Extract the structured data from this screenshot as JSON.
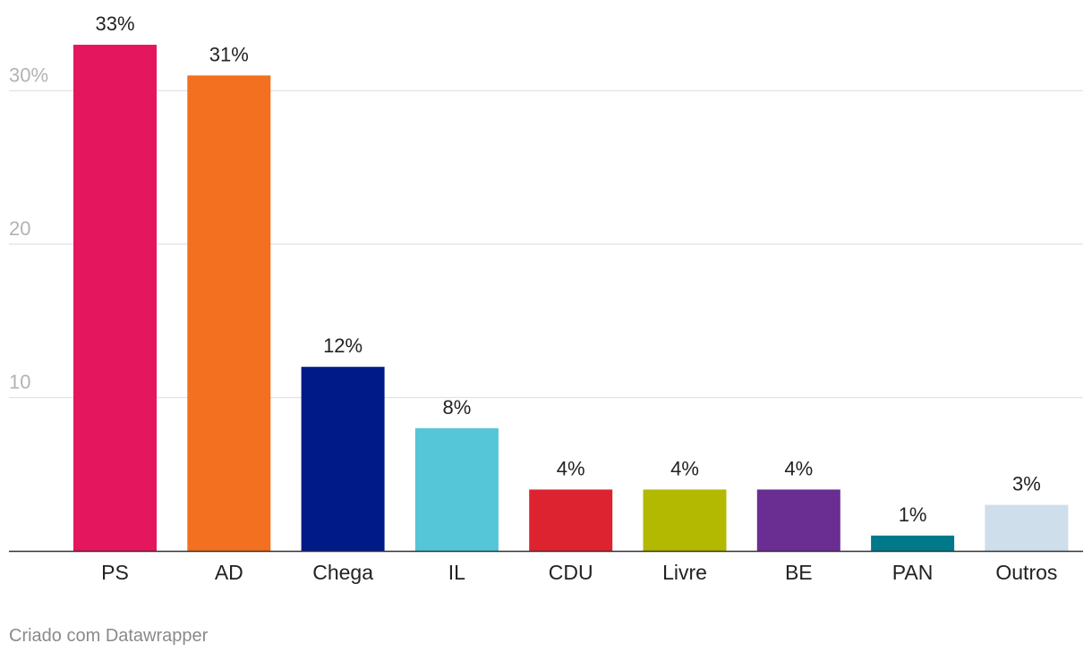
{
  "chart_data": {
    "type": "bar",
    "categories": [
      "PS",
      "AD",
      "Chega",
      "IL",
      "CDU",
      "Livre",
      "BE",
      "PAN",
      "Outros"
    ],
    "values": [
      33,
      31,
      12,
      8,
      4,
      4,
      4,
      1,
      3
    ],
    "value_labels": [
      "33%",
      "31%",
      "12%",
      "8%",
      "4%",
      "4%",
      "4%",
      "1%",
      "3%"
    ],
    "colors": [
      "#e3165e",
      "#f37021",
      "#001a87",
      "#55c5d8",
      "#dd2330",
      "#b3b800",
      "#6a2d91",
      "#007a8a",
      "#cfdeeb"
    ],
    "y_ticks": [
      {
        "value": 10,
        "label": "10"
      },
      {
        "value": 20,
        "label": "20"
      },
      {
        "value": 30,
        "label": "30%"
      }
    ],
    "ylim": [
      0,
      33
    ],
    "grid": true,
    "title": "",
    "xlabel": "",
    "ylabel": ""
  },
  "footer": {
    "credit": "Criado com Datawrapper"
  }
}
